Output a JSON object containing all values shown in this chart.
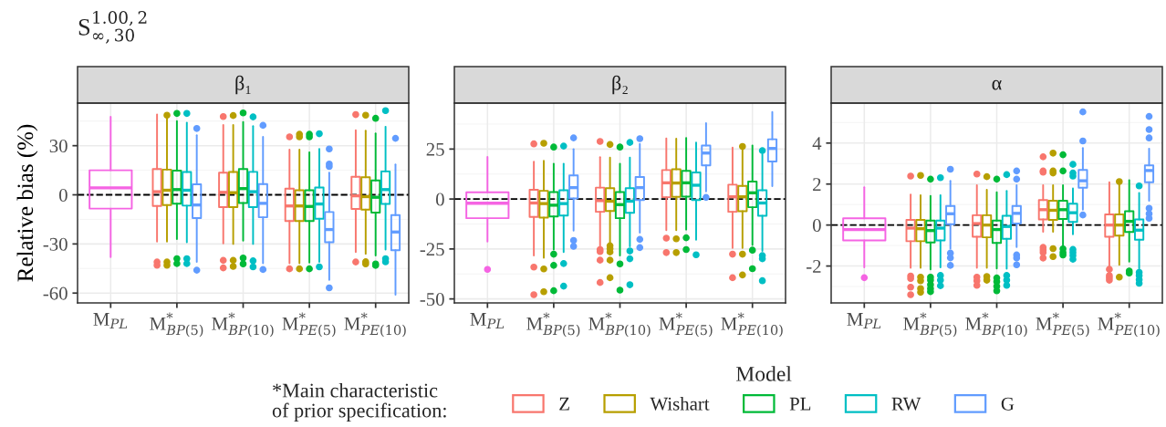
{
  "chart_data": [
    {
      "type": "box",
      "title": "β₁",
      "ylabel": "Relative bias (%)",
      "legend_title": "Model",
      "legend": "bottom",
      "grid": true,
      "annotations": [
        "S$^{1.00,2}$$_{∞,30}$",
        "*Main characteristic\nof prior specification:"
      ],
      "categories": [
        "M$_{PL}$",
        "M$^{*}$$_{BP(5)}$",
        "M$^{*}$$_{BP(10)}$",
        "M$^{*}$$_{PE(5)}$",
        "M$^{*}$$_{PE(10)}$"
      ],
      "ylim": [
        -66,
        56
      ],
      "yticks": [
        -60,
        -30,
        0,
        30
      ],
      "ref_lines": [
        {
          "axis": "y",
          "value": 0,
          "color": "#000000",
          "line_style": "dashed"
        }
      ],
      "series": [
        {
          "color": "#F564E3",
          "boxes": [
            {
              "low": -38,
              "q1": -8.4,
              "median": 4.3,
              "q3": 15,
              "high": 47.6
            },
            null,
            null,
            null,
            null
          ]
        },
        {
          "name": "Z",
          "color": "#F8766D",
          "boxes": [
            null,
            {
              "low": -28.5,
              "q1": -6.8,
              "median": 1.9,
              "q3": 15.7,
              "high": 49,
              "outliers": [
                -41,
                -43
              ]
            },
            {
              "low": -29.6,
              "q1": -7.5,
              "median": 1.5,
              "q3": 13.5,
              "high": 42.6,
              "outliers": [
                47.8,
                -40,
                -44.6
              ]
            },
            {
              "low": -41.8,
              "q1": -16,
              "median": -6.8,
              "q3": 3.8,
              "high": 27.6,
              "outliers": [
                35.4,
                -45.2
              ]
            },
            {
              "low": -35,
              "q1": -8.6,
              "median": -0.6,
              "q3": 11,
              "high": 39.4,
              "outliers": [
                49,
                -41
              ]
            }
          ]
        },
        {
          "name": "Wishart",
          "color": "#B79F00",
          "boxes": [
            null,
            {
              "low": -28.5,
              "q1": -6.2,
              "median": 2.8,
              "q3": 15.4,
              "high": 47,
              "outliers": [
                48.6,
                -41,
                -43
              ]
            },
            {
              "low": -30,
              "q1": -7.5,
              "median": 1.3,
              "q3": 13.9,
              "high": 42.6,
              "outliers": [
                48.4,
                -40,
                -43.7
              ]
            },
            {
              "low": -41.8,
              "q1": -16,
              "median": -6.8,
              "q3": 2.8,
              "high": 27.6,
              "outliers": [
                37,
                35.4,
                -45.2
              ]
            },
            {
              "low": -36,
              "q1": -9,
              "median": -1.1,
              "q3": 10.7,
              "high": 39.2,
              "outliers": [
                48.6,
                -40.9,
                -42.2
              ]
            }
          ]
        },
        {
          "name": "PL",
          "color": "#00BA38",
          "boxes": [
            null,
            {
              "low": -27,
              "q1": -5.4,
              "median": 3.2,
              "q3": 14.8,
              "high": 45,
              "outliers": [
                49.7,
                -39,
                -42
              ]
            },
            {
              "low": -28,
              "q1": -5,
              "median": 3.8,
              "q3": 15.7,
              "high": 44.4,
              "outliers": [
                50,
                -38.6,
                -42.2
              ]
            },
            {
              "low": -41.4,
              "q1": -16,
              "median": -7.1,
              "q3": 2.8,
              "high": 26,
              "outliers": [
                37,
                35.4,
                -45.2
              ]
            },
            {
              "low": -37,
              "q1": -10.9,
              "median": -1.5,
              "q3": 8.8,
              "high": 37.5,
              "outliers": [
                46.7,
                -42.2,
                -43.1
              ]
            }
          ]
        },
        {
          "name": "RW",
          "color": "#00BFC4",
          "boxes": [
            null,
            {
              "low": -29,
              "q1": -6.6,
              "median": 2.8,
              "q3": 13.9,
              "high": 44,
              "outliers": [
                49.7,
                -39,
                -42
              ]
            },
            {
              "low": -30,
              "q1": -7.5,
              "median": 1.9,
              "q3": 14,
              "high": 42,
              "outliers": [
                47.6,
                -40.3,
                -44
              ]
            },
            {
              "low": -40.9,
              "q1": -14.6,
              "median": -5.6,
              "q3": 4.5,
              "high": 28,
              "outliers": [
                37.3,
                -44
              ]
            },
            {
              "low": -33.4,
              "q1": -5.6,
              "median": 3.2,
              "q3": 14.3,
              "high": 41.6,
              "outliers": [
                51.4,
                -39,
                -40.9
              ]
            }
          ]
        },
        {
          "name": "G",
          "color": "#619CFF",
          "boxes": [
            null,
            {
              "low": -41,
              "q1": -14.2,
              "median": -6.2,
              "q3": 6.4,
              "high": 36.4,
              "outliers": [
                40.5,
                -46
              ]
            },
            {
              "low": -41.8,
              "q1": -13.7,
              "median": -5.2,
              "q3": 6.6,
              "high": 35.4,
              "outliers": [
                42.4,
                -45.6
              ]
            },
            {
              "low": -52,
              "q1": -29,
              "median": -21.2,
              "q3": -10.5,
              "high": 13.5,
              "outliers": [
                28,
                18.8,
                17.3,
                -56.8
              ]
            },
            {
              "low": -61,
              "q1": -33.8,
              "median": -22.7,
              "q3": -12.4,
              "high": 18.6,
              "outliers": [
                34.5
              ]
            }
          ]
        }
      ]
    },
    {
      "type": "box",
      "title": "β₂",
      "grid": true,
      "categories": [
        "M$_{PL}$",
        "M$^{*}$$_{BP(5)}$",
        "M$^{*}$$_{BP(10)}$",
        "M$^{*}$$_{PE(5)}$",
        "M$^{*}$$_{PE(10)}$"
      ],
      "ylim": [
        -52,
        48
      ],
      "yticks": [
        -50,
        -25,
        0,
        25
      ],
      "ref_lines": [
        {
          "axis": "y",
          "value": 0,
          "color": "#000000",
          "line_style": "dashed"
        }
      ],
      "series": [
        {
          "color": "#F564E3",
          "boxes": [
            {
              "low": -21.3,
              "q1": -9.6,
              "median": -2.1,
              "q3": 3.4,
              "high": 21.1,
              "outliers": [
                -35.2
              ]
            },
            null,
            null,
            null,
            null
          ]
        },
        {
          "color": "#F8766D",
          "boxes": [
            null,
            {
              "low": -28.3,
              "q1": -9,
              "median": -2,
              "q3": 4.6,
              "high": 18.7,
              "outliers": [
                27.6,
                -34.1,
                -47.9
              ]
            },
            {
              "low": -24,
              "q1": -6.4,
              "median": -0.8,
              "q3": 5.7,
              "high": 21,
              "outliers": [
                28.8,
                -25.3,
                -26.3,
                -30.6,
                -41.8
              ]
            },
            {
              "low": -15.6,
              "q1": 0.9,
              "median": 8.1,
              "q3": 14.5,
              "high": 30.3,
              "outliers": [
                -19.6,
                -26.8
              ]
            },
            {
              "low": -24.5,
              "q1": -6.4,
              "median": 1.1,
              "q3": 7.2,
              "high": 25.7,
              "outliers": [
                -27.6,
                -39.4
              ]
            }
          ]
        },
        {
          "color": "#B79F00",
          "boxes": [
            null,
            {
              "low": -29.4,
              "q1": -9.3,
              "median": -2.3,
              "q3": 4.1,
              "high": 19.1,
              "outliers": [
                27.9,
                -35,
                -46.4
              ]
            },
            {
              "low": -21.7,
              "q1": -6,
              "median": -1.1,
              "q3": 5.4,
              "high": 20.7,
              "outliers": [
                27.3,
                -23.4,
                -24.8,
                -26.5,
                -30.6,
                -39.4
              ]
            },
            {
              "low": -15.6,
              "q1": 1.1,
              "median": 8,
              "q3": 14.9,
              "high": 30.2,
              "outliers": [
                -19.9,
                -26.8
              ]
            },
            {
              "low": -24.5,
              "q1": -6.1,
              "median": 1.1,
              "q3": 6.6,
              "high": 24.5,
              "outliers": [
                26.3,
                -27.6,
                -38
              ]
            }
          ]
        },
        {
          "color": "#00BA38",
          "boxes": [
            null,
            {
              "low": -25.3,
              "q1": -8.7,
              "median": -3.1,
              "q3": 3.5,
              "high": 17.6,
              "outliers": [
                26,
                -27.6,
                -33.2,
                -45.9
              ]
            },
            {
              "low": -28.3,
              "q1": -9.6,
              "median": -2.8,
              "q3": 3.5,
              "high": 17.6,
              "outliers": [
                26,
                -32.5,
                -45.6
              ]
            },
            {
              "low": -15.3,
              "q1": 1.2,
              "median": 8.1,
              "q3": 14.1,
              "high": 30.6,
              "outliers": [
                -19.4,
                -25.3
              ]
            },
            {
              "low": -23,
              "q1": -4.1,
              "median": 3.1,
              "q3": 8.7,
              "high": 26.8,
              "outliers": [
                -25.6,
                -34.9
              ]
            }
          ]
        },
        {
          "color": "#00BFC4",
          "boxes": [
            null,
            {
              "low": -26.5,
              "q1": -8.3,
              "median": -2.3,
              "q3": 4.4,
              "high": 17.6,
              "outliers": [
                26.5,
                -32.3,
                -43.6
              ]
            },
            {
              "low": -23.7,
              "q1": -6.9,
              "median": -1.1,
              "q3": 5.4,
              "high": 20.7,
              "outliers": [
                28.3,
                -26,
                -29.9,
                -42.9
              ]
            },
            {
              "low": -20.4,
              "q1": -0.5,
              "median": 6.9,
              "q3": 13.3,
              "high": 28.3,
              "outliers": [
                -27.9
              ]
            },
            {
              "low": -26,
              "q1": -8.4,
              "median": -2,
              "q3": 4.4,
              "high": 22.2,
              "outliers": [
                24.2,
                -28.3,
                -29.9,
                -40.9
              ]
            }
          ]
        },
        {
          "color": "#619CFF",
          "boxes": [
            null,
            {
              "low": -15.8,
              "q1": 0.3,
              "median": 5.7,
              "q3": 11.8,
              "high": 25,
              "outliers": [
                30.6,
                -20.7,
                -23.7
              ]
            },
            {
              "low": -16.8,
              "q1": -0.5,
              "median": 5.7,
              "q3": 11,
              "high": 27.6,
              "outliers": [
                30.2,
                -20.2,
                -24.3
              ]
            },
            {
              "low": 3.8,
              "q1": 16.8,
              "median": 23,
              "q3": 26.8,
              "high": 38,
              "outliers": [
                0.8
              ]
            },
            {
              "low": 6.4,
              "q1": 18.8,
              "median": 25.3,
              "q3": 29.9,
              "high": 43.6
            }
          ]
        }
      ]
    },
    {
      "type": "box",
      "title": "α",
      "grid": true,
      "categories": [
        "M$_{PL}$",
        "M$^{*}$$_{BP(5)}$",
        "M$^{*}$$_{BP(10)}$",
        "M$^{*}$$_{PE(5)}$",
        "M$^{*}$$_{PE(10)}$"
      ],
      "ylim": [
        -3.8,
        5.95
      ],
      "yticks": [
        -2,
        0,
        2,
        4
      ],
      "ref_lines": [
        {
          "axis": "y",
          "value": 0,
          "color": "#000000",
          "line_style": "dashed"
        }
      ],
      "series": [
        {
          "color": "#F564E3",
          "boxes": [
            {
              "low": -2.06,
              "q1": -0.75,
              "median": -0.22,
              "q3": 0.33,
              "high": 1.84,
              "outliers": [
                -2.57
              ]
            },
            null,
            null,
            null,
            null
          ]
        },
        {
          "color": "#F8766D",
          "boxes": [
            null,
            {
              "low": -2.09,
              "q1": -0.79,
              "median": -0.15,
              "q3": 0.25,
              "high": 1.49,
              "outliers": [
                2.39,
                -2.49,
                -2.61,
                -3.03,
                -3.4
              ]
            },
            {
              "low": -2.09,
              "q1": -0.57,
              "median": 0.07,
              "q3": 0.48,
              "high": 1.94,
              "outliers": [
                2.49,
                -2.54,
                -2.72,
                -2.94
              ]
            },
            {
              "low": -0.33,
              "q1": 0.27,
              "median": 0.75,
              "q3": 1.22,
              "high": 1.94,
              "outliers": [
                3.33,
                2.64,
                2.58,
                -1.09,
                -1.22,
                -1.34,
                -1.61
              ]
            },
            {
              "low": -2.09,
              "q1": -0.57,
              "median": 0,
              "q3": 0.52,
              "high": 2.09,
              "outliers": [
                -2.16,
                -2.46,
                -2.57,
                -2.69
              ]
            }
          ]
        },
        {
          "color": "#B79F00",
          "boxes": [
            null,
            {
              "low": -2.09,
              "q1": -0.79,
              "median": -0.18,
              "q3": 0.25,
              "high": 1.46,
              "outliers": [
                2.42,
                -2.54,
                -2.72,
                -3.1,
                -3.28
              ]
            },
            {
              "low": -2.09,
              "q1": -0.6,
              "median": 0,
              "q3": 0.48,
              "high": 1.72,
              "outliers": [
                2.36,
                -2.51,
                -2.69
              ]
            },
            {
              "low": -0.33,
              "q1": 0.25,
              "median": 0.72,
              "q3": 1.19,
              "high": 1.94,
              "outliers": [
                3.51,
                2.64,
                2.54,
                -1.15,
                -1.54
              ]
            },
            {
              "low": -1.94,
              "q1": -0.52,
              "median": 0,
              "q3": 0.52,
              "high": 2.05,
              "outliers": [
                2.12,
                -2.54
              ]
            }
          ]
        },
        {
          "color": "#00BA38",
          "boxes": [
            null,
            {
              "low": -2.16,
              "q1": -0.85,
              "median": -0.27,
              "q3": 0.22,
              "high": 1.42,
              "outliers": [
                2.24,
                -2.54,
                -2.69,
                -2.91,
                -3.1,
                -3.25
              ]
            },
            {
              "low": -2.12,
              "q1": -0.87,
              "median": -0.22,
              "q3": 0.22,
              "high": 1.6,
              "outliers": [
                2.24,
                -2.58,
                -2.76,
                -2.99,
                -3.21
              ]
            },
            {
              "low": -1.04,
              "q1": 0.3,
              "median": 0.75,
              "q3": 1.19,
              "high": 1.94,
              "outliers": [
                3.43,
                2.64,
                -1.16,
                -1.34,
                -1.46
              ]
            },
            {
              "low": -1.79,
              "q1": -0.34,
              "median": 0.18,
              "q3": 0.67,
              "high": 2.19,
              "outliers": [
                -2.24,
                -2.34
              ]
            }
          ]
        },
        {
          "color": "#00BFC4",
          "boxes": [
            null,
            {
              "low": -2.06,
              "q1": -0.75,
              "median": -0.15,
              "q3": 0.22,
              "high": 1.46,
              "outliers": [
                2.31,
                -2.46,
                -2.69,
                -2.96
              ]
            },
            {
              "low": -2.13,
              "q1": -0.67,
              "median": -0.07,
              "q3": 0.45,
              "high": 1.67,
              "outliers": [
                2.46,
                -2.46,
                -2.69,
                -2.94
              ]
            },
            {
              "low": -0.45,
              "q1": 0.15,
              "median": 0.6,
              "q3": 1.04,
              "high": 1.79,
              "outliers": [
                2.96,
                2.54,
                2.39,
                -1.19,
                -1.34,
                -1.49,
                -1.67
              ]
            },
            {
              "low": -2.12,
              "q1": -0.72,
              "median": -0.25,
              "q3": 0.27,
              "high": 1.57,
              "outliers": [
                1.91,
                -2.31,
                -2.46,
                -2.66,
                -2.84
              ]
            }
          ]
        },
        {
          "color": "#619CFF",
          "boxes": [
            null,
            {
              "low": -1.15,
              "q1": 0.04,
              "median": 0.55,
              "q3": 0.93,
              "high": 2.16,
              "outliers": [
                2.72,
                -1.37,
                -1.6,
                -1.97
              ]
            },
            {
              "low": -1.07,
              "q1": 0.07,
              "median": 0.57,
              "q3": 0.93,
              "high": 1.94,
              "outliers": [
                2.64,
                2.24,
                -1.46,
                -1.61,
                -1.94
              ]
            },
            {
              "low": 0.75,
              "q1": 1.82,
              "median": 2.16,
              "q3": 2.69,
              "high": 3.76,
              "outliers": [
                5.52,
                4.1,
                0.49
              ]
            },
            {
              "low": 1.19,
              "q1": 2.09,
              "median": 2.66,
              "q3": 2.91,
              "high": 3.73,
              "outliers": [
                5.3,
                4.66,
                4.25,
                0.82,
                0.55,
                0.33
              ]
            }
          ]
        }
      ]
    }
  ]
}
